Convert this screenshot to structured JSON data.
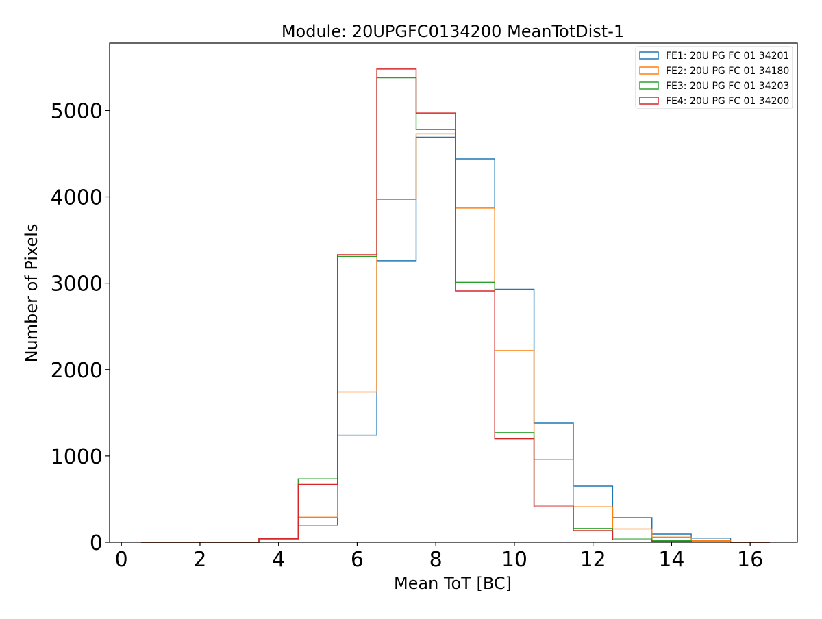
{
  "chart_data": {
    "type": "histogram-step",
    "title": "Module: 20UPGFC0134200 MeanTotDist-1",
    "xlabel": "Mean ToT [BC]",
    "ylabel": "Number of Pixels",
    "xlim": [
      -0.3,
      17.2
    ],
    "ylim": [
      0,
      5780
    ],
    "xticks": [
      0,
      2,
      4,
      6,
      8,
      10,
      12,
      14,
      16
    ],
    "yticks": [
      0,
      1000,
      2000,
      3000,
      4000,
      5000
    ],
    "grid": false,
    "legend_position": "top-right",
    "bin_edges": [
      0.5,
      1.5,
      2.5,
      3.5,
      4.5,
      5.5,
      6.5,
      7.5,
      8.5,
      9.5,
      10.5,
      11.5,
      12.5,
      13.5,
      14.5,
      15.5,
      16.5
    ],
    "series": [
      {
        "name": "FE1: 20U PG FC 01 34201",
        "color": "#1f77b4",
        "values": [
          0,
          0,
          0,
          30,
          200,
          1240,
          3260,
          4690,
          4440,
          2930,
          1380,
          650,
          285,
          95,
          50,
          0
        ]
      },
      {
        "name": "FE2: 20U PG FC 01 34180",
        "color": "#ff7f0e",
        "values": [
          0,
          0,
          0,
          40,
          290,
          1740,
          3970,
          4730,
          3870,
          2220,
          960,
          410,
          155,
          60,
          20,
          0
        ]
      },
      {
        "name": "FE3: 20U PG FC 01 34203",
        "color": "#2ca02c",
        "values": [
          0,
          0,
          0,
          50,
          735,
          3310,
          5380,
          4780,
          3010,
          1270,
          430,
          160,
          50,
          20,
          5,
          0
        ]
      },
      {
        "name": "FE4: 20U PG FC 01 34200",
        "color": "#d62728",
        "values": [
          0,
          0,
          0,
          45,
          670,
          3330,
          5480,
          4970,
          2910,
          1200,
          410,
          135,
          30,
          10,
          5,
          0
        ]
      }
    ]
  }
}
